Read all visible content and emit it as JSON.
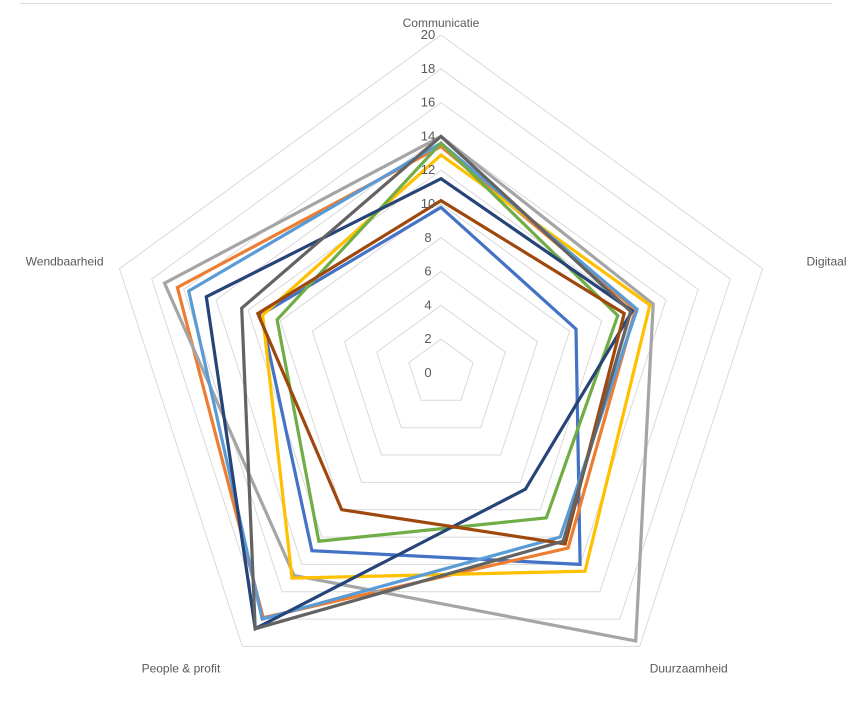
{
  "chart_data": {
    "type": "radar",
    "title": "",
    "axes": [
      "Communicatie",
      "Digitaal",
      "Duurzaamheid",
      "People & profit",
      "Wendbaarheid"
    ],
    "rlim": [
      0,
      20
    ],
    "rticks": [
      0,
      2,
      4,
      6,
      8,
      10,
      12,
      14,
      16,
      18,
      20
    ],
    "grid": true,
    "legend": "none",
    "series": [
      {
        "color": "#4472C4",
        "values": [
          9.8,
          8.4,
          14.0,
          13.0,
          11.2
        ]
      },
      {
        "color": "#ED7D31",
        "values": [
          13.4,
          12.1,
          12.8,
          17.9,
          16.4
        ]
      },
      {
        "color": "#A5A5A5",
        "values": [
          14.0,
          13.2,
          19.6,
          14.8,
          17.2
        ]
      },
      {
        "color": "#FFC000",
        "values": [
          12.9,
          13.0,
          14.5,
          15.0,
          11.1
        ]
      },
      {
        "color": "#5B9BD5",
        "values": [
          13.6,
          12.2,
          12.0,
          18.0,
          15.7
        ]
      },
      {
        "color": "#70AD47",
        "values": [
          13.6,
          11.0,
          10.6,
          12.3,
          10.2
        ]
      },
      {
        "color": "#264478",
        "values": [
          11.5,
          11.9,
          8.5,
          18.7,
          14.6
        ]
      },
      {
        "color": "#9E480E",
        "values": [
          10.2,
          11.4,
          12.5,
          10.0,
          11.4
        ]
      },
      {
        "color": "#636363",
        "values": [
          14.0,
          11.8,
          12.3,
          18.7,
          12.4
        ]
      }
    ]
  }
}
